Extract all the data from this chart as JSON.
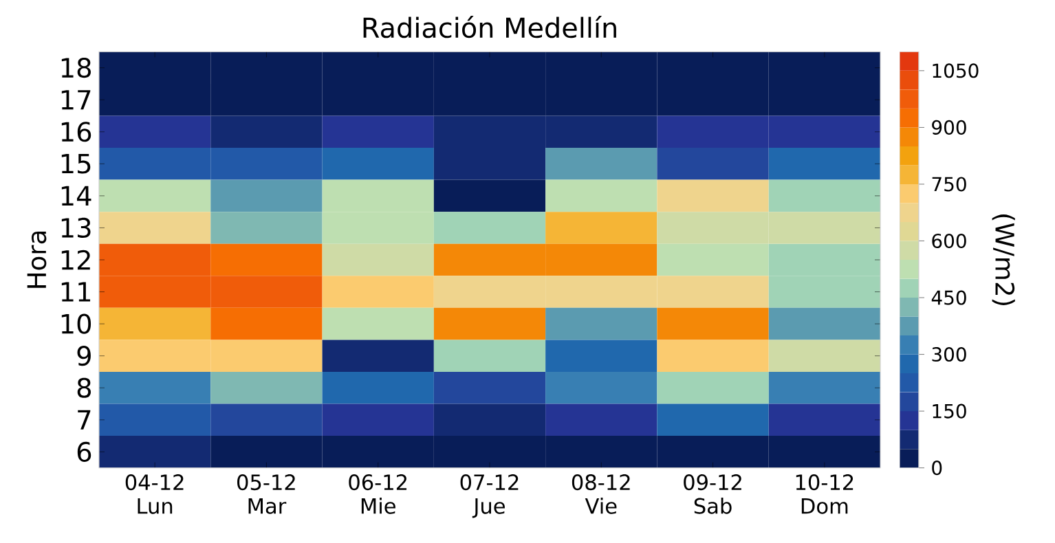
{
  "chart_data": {
    "type": "heatmap",
    "title": "Radiación Medellín",
    "ylabel": "Hora",
    "clabel": "(W/m2)",
    "categories": [
      "04-12 Lun",
      "05-12 Mar",
      "06-12 Mie",
      "07-12 Jue",
      "08-12 Vie",
      "09-12 Sab",
      "10-12 Dom"
    ],
    "y_categories": [
      "18",
      "17",
      "16",
      "15",
      "14",
      "13",
      "12",
      "11",
      "10",
      "9",
      "8",
      "7",
      "6"
    ],
    "cells": [
      [
        25,
        25,
        25,
        25,
        25,
        25,
        25
      ],
      [
        25,
        25,
        25,
        25,
        25,
        25,
        25
      ],
      [
        125,
        75,
        125,
        75,
        75,
        125,
        125
      ],
      [
        225,
        225,
        275,
        75,
        375,
        175,
        275
      ],
      [
        525,
        375,
        525,
        25,
        525,
        675,
        475
      ],
      [
        675,
        425,
        525,
        475,
        775,
        575,
        575
      ],
      [
        975,
        925,
        575,
        875,
        875,
        525,
        475
      ],
      [
        975,
        975,
        725,
        675,
        675,
        675,
        475
      ],
      [
        775,
        925,
        525,
        875,
        375,
        875,
        375
      ],
      [
        725,
        725,
        75,
        475,
        275,
        725,
        575
      ],
      [
        325,
        425,
        275,
        175,
        325,
        475,
        325
      ],
      [
        225,
        175,
        125,
        75,
        125,
        275,
        125
      ],
      [
        75,
        25,
        25,
        25,
        25,
        25,
        25
      ]
    ],
    "clim": [
      0,
      1100
    ],
    "cticks": [
      0,
      150,
      300,
      450,
      600,
      750,
      900,
      1050
    ]
  }
}
